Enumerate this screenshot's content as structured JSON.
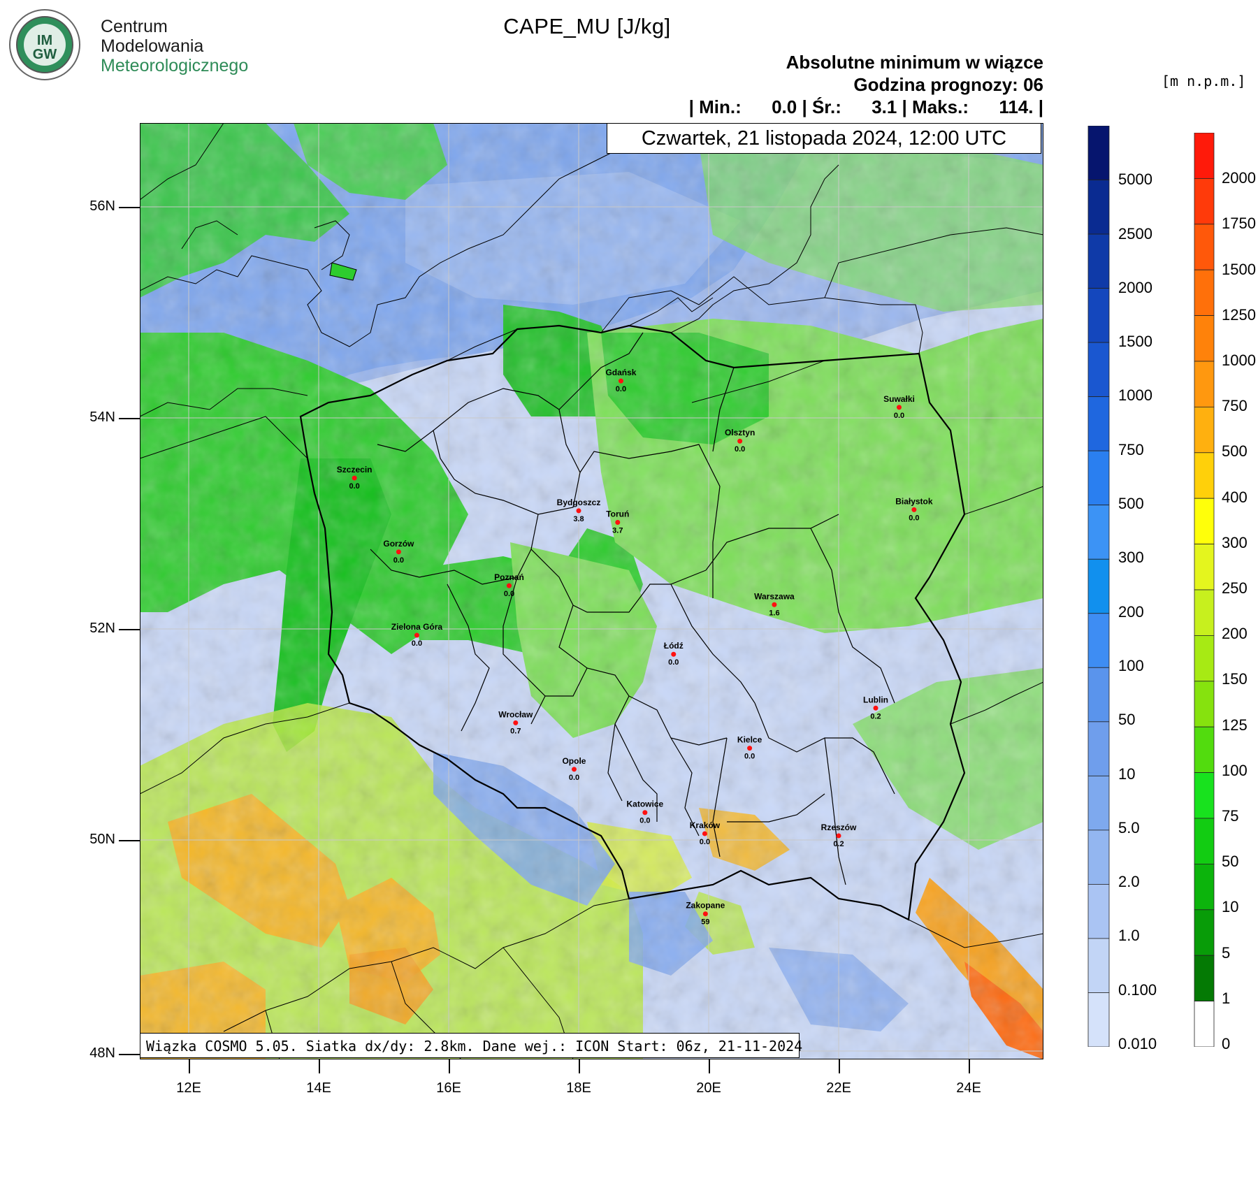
{
  "header": {
    "org_line1": "Centrum",
    "org_line2": "Modelowania",
    "org_line3": "Meteorologicznego",
    "logo_text": "IMGW",
    "title": "CAPE_MU [J/kg]",
    "info_line1": "Absolutne minimum w wiązce",
    "info_line2": "Godzina prognozy: 06",
    "info_line3": "| Min.:      0.0 | Śr.:      3.1 | Maks.:      114. |",
    "date": "Czwartek, 21 listopada 2024, 12:00 UTC",
    "unit_right": "[m n.p.m.]"
  },
  "footer": {
    "text": "Wiązka COSMO 5.05. Siatka dx/dy: 2.8km. Dane wej.: ICON Start: 06z, 21-11-2024"
  },
  "axes": {
    "lat_ticks": [
      "56N",
      "54N",
      "52N",
      "50N",
      "48N"
    ],
    "lon_ticks": [
      "12E",
      "14E",
      "16E",
      "18E",
      "20E",
      "22E",
      "24E"
    ]
  },
  "colors": {
    "sea": "#7fa7ef",
    "sea_light": "#a6c1f3",
    "land_blue": "#9cb8f0",
    "land_pale": "#c9d8f8",
    "green": "#2ecc2e",
    "green_light": "#7ee05a",
    "yellowgreen": "#b8ea3e",
    "orange": "#f5b82a",
    "border": "#000000"
  },
  "colorbar_cape": {
    "labels": [
      "5000",
      "2500",
      "2000",
      "1500",
      "1000",
      "750",
      "500",
      "300",
      "200",
      "100",
      "50",
      "10",
      "5.0",
      "2.0",
      "1.0",
      "0.100",
      "0.010"
    ],
    "colors": [
      "#06156e",
      "#0a2b91",
      "#0f3aa8",
      "#1447bd",
      "#1a57d0",
      "#1f67df",
      "#2a7ff0",
      "#3c93f5",
      "#1190ee",
      "#3e8df3",
      "#5a94ec",
      "#6f9eec",
      "#7ea9ee",
      "#93b6f0",
      "#aac4f3",
      "#c2d5f6",
      "#d5e2fa"
    ]
  },
  "colorbar_height": {
    "labels": [
      "2000",
      "1750",
      "1500",
      "1250",
      "1000",
      "750",
      "500",
      "400",
      "300",
      "250",
      "200",
      "150",
      "125",
      "100",
      "75",
      "50",
      "10",
      "5",
      "1",
      "0"
    ],
    "colors": [
      "#ff1a0a",
      "#ff3a0a",
      "#ff580a",
      "#ff700a",
      "#ff820a",
      "#ff980f",
      "#ffb00f",
      "#ffd00a",
      "#ffff0a",
      "#e4f51e",
      "#c7f01e",
      "#a7ea14",
      "#86e20e",
      "#52dc0e",
      "#18e21e",
      "#12cc12",
      "#0cb40c",
      "#089c08",
      "#047a04",
      "#ffffff"
    ]
  },
  "cities": [
    {
      "name": "Gdańsk",
      "value": "0.0"
    },
    {
      "name": "Suwałki",
      "value": "0.0"
    },
    {
      "name": "Olsztyn",
      "value": "0.0"
    },
    {
      "name": "Szczecin",
      "value": "0.0"
    },
    {
      "name": "Bydgoszcz",
      "value": "3.8"
    },
    {
      "name": "Toruń",
      "value": "3.7"
    },
    {
      "name": "Białystok",
      "value": "0.0"
    },
    {
      "name": "Gorzów",
      "value": "0.0"
    },
    {
      "name": "Poznań",
      "value": "0.0"
    },
    {
      "name": "Warszawa",
      "value": "1.6"
    },
    {
      "name": "Zielona Góra",
      "value": "0.0"
    },
    {
      "name": "Łódź",
      "value": "0.0"
    },
    {
      "name": "Lublin",
      "value": "0.2"
    },
    {
      "name": "Wrocław",
      "value": "0.7"
    },
    {
      "name": "Kielce",
      "value": "0.0"
    },
    {
      "name": "Opole",
      "value": "0.0"
    },
    {
      "name": "Katowice",
      "value": "0.0"
    },
    {
      "name": "Kraków",
      "value": "0.0"
    },
    {
      "name": "Rzeszów",
      "value": "0.2"
    },
    {
      "name": "Zakopane",
      "value": "59"
    }
  ]
}
